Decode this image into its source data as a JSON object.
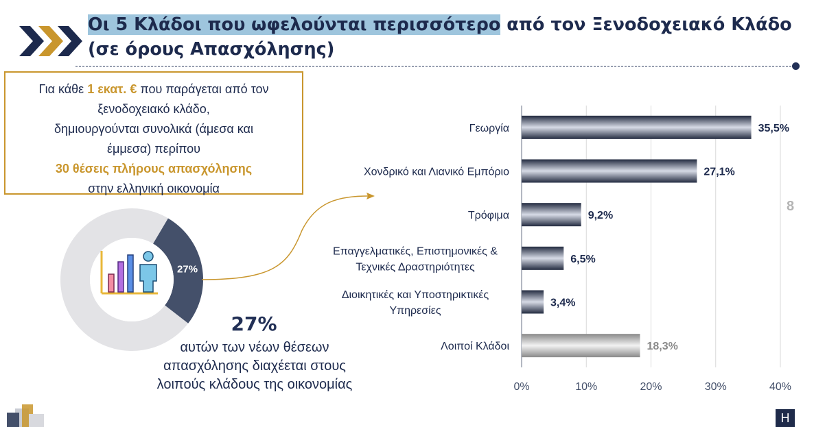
{
  "header": {
    "title_highlight": "Οι 5 Κλάδοι που ωφελούνται περισσότερο",
    "title_rest": " από τον Ξενοδοχειακό Κλάδο (σε όρους Απασχόλησης)"
  },
  "info_box": {
    "line1_pre": "Για κάθε ",
    "line1_bold": "1 εκατ. €",
    "line1_post": " που παράγεται από τον",
    "line2": "ξενοδοχειακό κλάδο,",
    "line3": "δημιουργούνται συνολικά (άμεσα και",
    "line4": "έμμεσα) περίπου",
    "line5_bold": "30 θέσεις πλήρους απασχόλησης",
    "line6": "στην ελληνική οικονομία"
  },
  "donut": {
    "value": 27,
    "label": "27%",
    "highlight_color": "#44506a",
    "rest_color": "#e3e3e6",
    "icon": "bar-chart-person-icon"
  },
  "summary": {
    "big_value": "27%",
    "line1": "αυτών των νέων θέσεων",
    "line2": "απασχόλησης διαχέεται στους",
    "line3": "λοιπούς κλάδους της οικονομίας"
  },
  "page_number": "8",
  "brand_logo": "H",
  "colors": {
    "navy": "#1d2a4d",
    "gold": "#c9962d",
    "highlight": "#9ec5dd",
    "other_bar": "#a6a6a6"
  },
  "chart_data": {
    "type": "bar",
    "orientation": "horizontal",
    "categories": [
      [
        "Γεωργία"
      ],
      [
        "Χονδρικό και Λιανικό Εμπόριο"
      ],
      [
        "Τρόφιμα"
      ],
      [
        "Επαγγελματικές, Επιστημονικές &",
        "Τεχνικές Δραστηριότητες"
      ],
      [
        "Διοικητικές και Υποστηρικτικές",
        "Υπηρεσίες"
      ],
      [
        "Λοιποί Κλάδοι"
      ]
    ],
    "values": [
      35.5,
      27.1,
      9.2,
      6.5,
      3.4,
      18.3
    ],
    "value_labels": [
      "35,5%",
      "27,1%",
      "9,2%",
      "6,5%",
      "3,4%",
      "18,3%"
    ],
    "highlight": [
      false,
      false,
      false,
      false,
      false,
      true
    ],
    "xlim": [
      0,
      40
    ],
    "xticks": [
      0,
      10,
      20,
      30,
      40
    ],
    "xtick_labels": [
      "0%",
      "10%",
      "20%",
      "30%",
      "40%"
    ],
    "grid": true,
    "xlabel": "",
    "ylabel": ""
  }
}
